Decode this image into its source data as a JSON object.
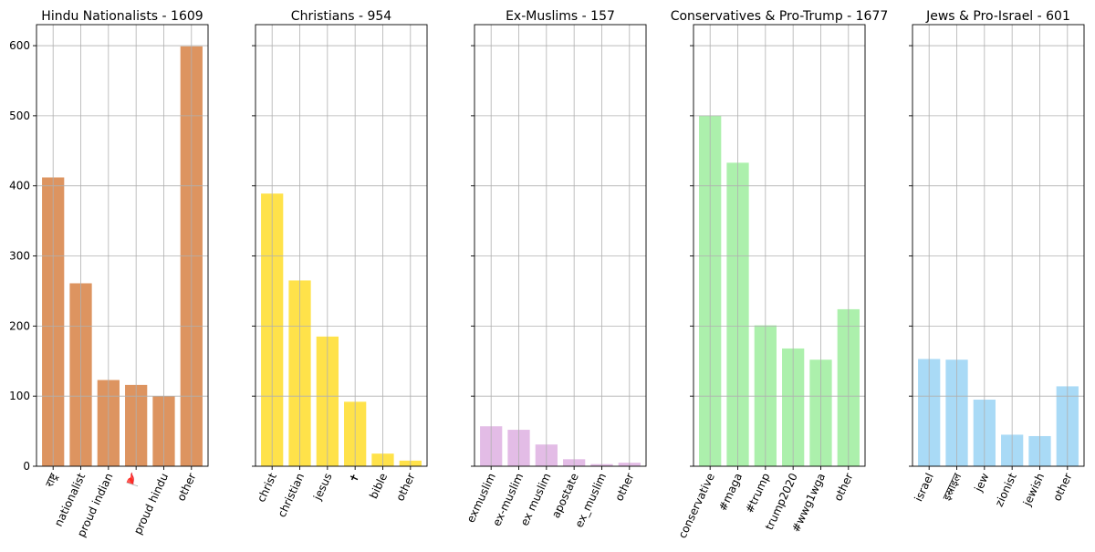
{
  "chart_data": [
    {
      "type": "bar",
      "title": "Hindu Nationalists - 1609",
      "categories": [
        "राष्ट्र",
        "nationalist",
        "proud indian",
        "🚩",
        "proud hindu",
        "other"
      ],
      "values": [
        412,
        261,
        123,
        116,
        100,
        599
      ],
      "color": "#dd9460",
      "ylim": [
        0,
        630
      ],
      "yticks": [
        0,
        100,
        200,
        300,
        400,
        500,
        600
      ],
      "grid": true,
      "xlabel": "",
      "ylabel": ""
    },
    {
      "type": "bar",
      "title": "Christians - 954",
      "categories": [
        "christ",
        "christian",
        "jesus",
        "✝",
        "bible",
        "other"
      ],
      "values": [
        389,
        265,
        185,
        92,
        18,
        8
      ],
      "color": "#ffe24a",
      "ylim": [
        0,
        630
      ],
      "yticks": [
        0,
        100,
        200,
        300,
        400,
        500,
        600
      ],
      "grid": true,
      "xlabel": "",
      "ylabel": ""
    },
    {
      "type": "bar",
      "title": "Ex-Muslims - 157",
      "categories": [
        "exmuslim",
        "ex-muslim",
        "ex muslim",
        "apostate",
        "ex_muslim",
        "other"
      ],
      "values": [
        57,
        52,
        31,
        10,
        3,
        5
      ],
      "color": "#e3bce6",
      "ylim": [
        0,
        630
      ],
      "yticks": [
        0,
        100,
        200,
        300,
        400,
        500,
        600
      ],
      "grid": true,
      "xlabel": "",
      "ylabel": ""
    },
    {
      "type": "bar",
      "title": "Conservatives & Pro-Trump - 1677",
      "categories": [
        "conservative",
        "#maga",
        "#trump",
        "trump2020",
        "#wwg1wga",
        "other"
      ],
      "values": [
        500,
        433,
        201,
        168,
        152,
        224
      ],
      "color": "#acf0ac",
      "ylim": [
        0,
        630
      ],
      "yticks": [
        0,
        100,
        200,
        300,
        400,
        500,
        600
      ],
      "grid": true,
      "xlabel": "",
      "ylabel": ""
    },
    {
      "type": "bar",
      "title": "Jews & Pro-Israel - 601",
      "categories": [
        "israel",
        "इस्राइल",
        "jew",
        "zionist",
        "jewish",
        "other"
      ],
      "values": [
        153,
        152,
        95,
        45,
        43,
        114
      ],
      "color": "#a9daf6",
      "ylim": [
        0,
        630
      ],
      "yticks": [
        0,
        100,
        200,
        300,
        400,
        500,
        600
      ],
      "grid": true,
      "xlabel": "",
      "ylabel": ""
    }
  ]
}
